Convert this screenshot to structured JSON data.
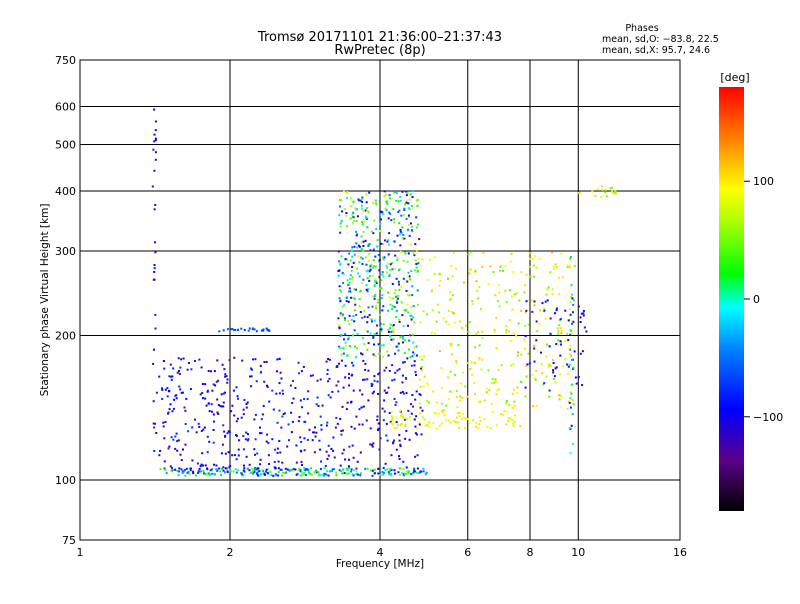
{
  "chart_data": {
    "type": "scatter",
    "title": "Tromsø 20171101 21:36:00–21:37:43",
    "subtitle": "RwPretec (8p)",
    "xlabel": "Frequency [MHz]",
    "ylabel": "Stationary phase Virtual Height [km]",
    "x_scale": "log2",
    "y_scale": "log",
    "xlim": [
      1,
      16
    ],
    "ylim": [
      75,
      750
    ],
    "x_ticks": [
      1,
      2,
      4,
      6,
      8,
      10,
      16
    ],
    "y_ticks": [
      75,
      100,
      200,
      300,
      400,
      500,
      600,
      750
    ],
    "grid": true,
    "phase_info": {
      "title": "Phases",
      "line_o": "mean, sd,O: −83.8, 22.5",
      "line_x": "mean, sd,X:  95.7, 24.6"
    },
    "colorbar": {
      "label": "[deg]",
      "range": [
        -180,
        180
      ],
      "ticks": [
        100,
        0,
        -100
      ],
      "tick_labels": [
        "100",
        "0",
        "−100"
      ]
    },
    "clusters": [
      {
        "desc": "ground echo trace",
        "x": [
          1.45,
          5.0
        ],
        "y": [
          102,
          106
        ],
        "phase": [
          -110,
          60
        ],
        "n": 260
      },
      {
        "desc": "o-mode spread",
        "x": [
          1.4,
          4.9
        ],
        "y": [
          105,
          180
        ],
        "phase": [
          -130,
          -70
        ],
        "n": 520
      },
      {
        "desc": "F-layer spread",
        "x": [
          3.3,
          4.8
        ],
        "y": [
          180,
          400
        ],
        "phase": [
          -130,
          90
        ],
        "n": 520
      },
      {
        "desc": "x-mode trace",
        "x": [
          4.2,
          7.9
        ],
        "y": [
          128,
          140
        ],
        "phase": [
          70,
          110
        ],
        "n": 90
      },
      {
        "desc": "x-mode spread",
        "x": [
          4.8,
          9.9
        ],
        "y": [
          140,
          300
        ],
        "phase": [
          40,
          120
        ],
        "n": 300
      },
      {
        "desc": "high-frequency o-mode",
        "x": [
          7.8,
          10.4
        ],
        "y": [
          150,
          240
        ],
        "phase": [
          -120,
          -80
        ],
        "n": 60
      },
      {
        "desc": "cusp",
        "x": [
          10.0,
          12.0
        ],
        "y": [
          388,
          410
        ],
        "phase": [
          40,
          110
        ],
        "n": 20
      },
      {
        "desc": "ionogram rise",
        "x": [
          1.9,
          2.4
        ],
        "y": [
          204,
          207
        ],
        "phase": [
          -70,
          -55
        ],
        "n": 25
      },
      {
        "desc": "vertical streak",
        "x": [
          1.4,
          1.42
        ],
        "y": [
          170,
          600
        ],
        "phase": [
          -130,
          -80
        ],
        "n": 25
      },
      {
        "desc": "vertical streak",
        "x": [
          9.6,
          9.8
        ],
        "y": [
          110,
          300
        ],
        "phase": [
          -120,
          110
        ],
        "n": 35
      }
    ]
  }
}
